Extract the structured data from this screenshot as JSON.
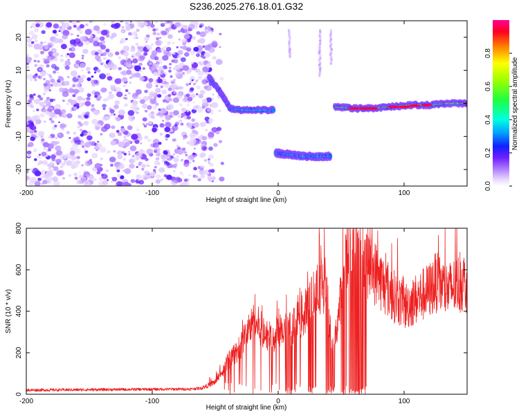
{
  "chart_data": [
    {
      "type": "heatmap",
      "title": "S236.2025.276.18.01.G32",
      "xlabel": "Height of straight line (km)",
      "ylabel": "Frequency (Hz)",
      "xlim": [
        -200,
        150
      ],
      "ylim": [
        -25,
        25
      ],
      "xticks": [
        -200,
        -100,
        0,
        100
      ],
      "xtick_labels": [
        "-200",
        "-100",
        "0",
        "100"
      ],
      "yticks": [
        -20,
        -10,
        0,
        10,
        20
      ],
      "ytick_labels": [
        "-20",
        "-10",
        "0",
        "10",
        "20"
      ],
      "colorbar": {
        "label": "Normalized spectral amplitude",
        "range": [
          0,
          1
        ],
        "ticks": [
          0.0,
          0.2,
          0.4,
          0.6,
          0.8
        ],
        "tick_labels": [
          "0.0",
          "0.2",
          "0.4",
          "0.6",
          "0.8"
        ]
      },
      "features": [
        {
          "name": "noise-region",
          "x_range": [
            -200,
            -52
          ],
          "f_range": [
            -25,
            25
          ],
          "amplitude": 0.12
        },
        {
          "name": "descending-trace",
          "points": [
            [
              -55,
              8
            ],
            [
              -47,
              4
            ],
            [
              -42,
              1
            ],
            [
              -38,
              -1.5
            ],
            [
              -30,
              -2
            ],
            [
              -20,
              -2
            ],
            [
              -10,
              -2
            ],
            [
              -3,
              -2
            ]
          ],
          "amplitude": 0.45
        },
        {
          "name": "lower-trace",
          "points": [
            [
              -2,
              -15
            ],
            [
              10,
              -15.5
            ],
            [
              20,
              -16
            ],
            [
              30,
              -16
            ],
            [
              42,
              -16
            ]
          ],
          "amplitude": 0.4
        },
        {
          "name": "upper-trace",
          "points": [
            [
              45,
              -1
            ],
            [
              60,
              -1.5
            ],
            [
              75,
              -1.5
            ],
            [
              90,
              -1
            ],
            [
              105,
              -0.5
            ],
            [
              120,
              -0.5
            ],
            [
              135,
              0
            ],
            [
              150,
              0
            ]
          ],
          "amplitude": 0.9
        },
        {
          "name": "faint-streak",
          "points": [
            [
              9,
              22
            ],
            [
              9,
              14
            ]
          ],
          "amplitude": 0.05
        },
        {
          "name": "faint-streak",
          "points": [
            [
              33,
              22
            ],
            [
              33,
              8
            ]
          ],
          "amplitude": 0.05
        },
        {
          "name": "faint-streak",
          "points": [
            [
              42,
              22
            ],
            [
              42,
              12
            ]
          ],
          "amplitude": 0.05
        }
      ]
    },
    {
      "type": "line",
      "xlabel": "Height of straight line (km)",
      "ylabel": "SNR (10 * v/v)",
      "xlim": [
        -200,
        150
      ],
      "ylim": [
        0,
        800
      ],
      "xticks": [
        -200,
        -100,
        0,
        100
      ],
      "xtick_labels": [
        "-200",
        "-100",
        "0",
        "100"
      ],
      "yticks": [
        0,
        200,
        400,
        600,
        800
      ],
      "ytick_labels": [
        "0",
        "200",
        "400",
        "600",
        "800"
      ],
      "series": [
        {
          "name": "SNR",
          "color": "#ee2020",
          "envelope": [
            [
              -200,
              20
            ],
            [
              -150,
              22
            ],
            [
              -100,
              24
            ],
            [
              -70,
              25
            ],
            [
              -60,
              30
            ],
            [
              -50,
              60
            ],
            [
              -45,
              100
            ],
            [
              -40,
              160
            ],
            [
              -35,
              190
            ],
            [
              -30,
              230
            ],
            [
              -25,
              300
            ],
            [
              -20,
              340
            ],
            [
              -15,
              330
            ],
            [
              -10,
              290
            ],
            [
              -5,
              270
            ],
            [
              0,
              300
            ],
            [
              5,
              320
            ],
            [
              10,
              320
            ],
            [
              15,
              350
            ],
            [
              20,
              380
            ],
            [
              25,
              440
            ],
            [
              30,
              500
            ],
            [
              35,
              540
            ],
            [
              38,
              520
            ],
            [
              40,
              380
            ],
            [
              43,
              200
            ],
            [
              46,
              300
            ],
            [
              50,
              480
            ],
            [
              55,
              660
            ],
            [
              60,
              720
            ],
            [
              65,
              680
            ],
            [
              70,
              640
            ],
            [
              75,
              600
            ],
            [
              80,
              560
            ],
            [
              85,
              520
            ],
            [
              90,
              480
            ],
            [
              95,
              460
            ],
            [
              100,
              420
            ],
            [
              105,
              440
            ],
            [
              110,
              460
            ],
            [
              115,
              480
            ],
            [
              120,
              500
            ],
            [
              125,
              540
            ],
            [
              130,
              520
            ],
            [
              135,
              500
            ],
            [
              140,
              520
            ],
            [
              145,
              540
            ],
            [
              150,
              540
            ]
          ],
          "dropouts": [
            [
              7,
              12
            ],
            [
              24,
              28
            ],
            [
              38,
              46
            ],
            [
              50,
              70
            ]
          ]
        }
      ]
    }
  ]
}
